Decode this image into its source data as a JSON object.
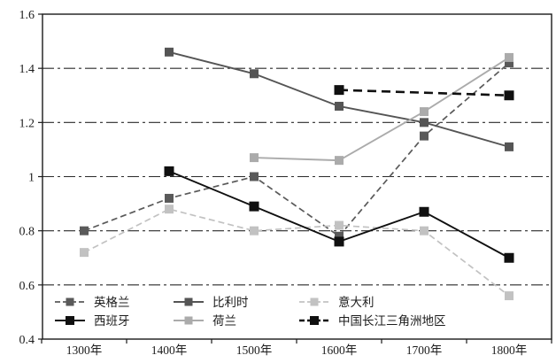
{
  "chart_data": {
    "type": "line",
    "title": "",
    "xlabel": "",
    "ylabel": "",
    "categories": [
      "1300年",
      "1400年",
      "1500年",
      "1600年",
      "1700年",
      "1800年"
    ],
    "y_axis": {
      "min": 0.4,
      "max": 1.6,
      "step": 0.2,
      "tick_values": [
        0.4,
        0.6,
        0.8,
        1.0,
        1.2,
        1.4,
        1.6
      ],
      "tick_labels": [
        "0.4",
        "0.6",
        "0.8",
        "1",
        "1.2",
        "1.4",
        "1.6"
      ]
    },
    "grid": "horizontal-dash-dot",
    "legend_position": "inside-bottom-left-2rows-3cols",
    "series": [
      {
        "key": "england",
        "name": "英格兰",
        "color": "#5a5a5a",
        "line": "dashed",
        "marker": "square",
        "values": [
          0.8,
          0.92,
          1.0,
          0.78,
          1.15,
          1.42
        ]
      },
      {
        "key": "belgium",
        "name": "比利时",
        "color": "#555555",
        "line": "solid",
        "marker": "square",
        "values": [
          null,
          1.46,
          1.38,
          1.26,
          1.2,
          1.11
        ]
      },
      {
        "key": "italy",
        "name": "意大利",
        "color": "#c2c2c2",
        "line": "dashed",
        "marker": "square",
        "values": [
          0.72,
          0.88,
          0.8,
          0.82,
          0.8,
          0.56
        ]
      },
      {
        "key": "spain",
        "name": "西班牙",
        "color": "#101010",
        "line": "solid",
        "marker": "square",
        "values": [
          null,
          1.02,
          0.89,
          0.76,
          0.87,
          0.7
        ]
      },
      {
        "key": "netherlands",
        "name": "荷兰",
        "color": "#ababab",
        "line": "solid",
        "marker": "square",
        "values": [
          null,
          null,
          1.07,
          1.06,
          1.24,
          1.44
        ]
      },
      {
        "key": "china-yangtze-delta",
        "name": "中国长江三角洲地区",
        "color": "#101010",
        "line": "dashed-bold",
        "marker": "square",
        "values": [
          null,
          null,
          null,
          1.32,
          null,
          1.3
        ]
      }
    ],
    "colors": {
      "axis": "#1a1a1a",
      "gridline": "#2a2a2a",
      "background": "#ffffff"
    }
  }
}
